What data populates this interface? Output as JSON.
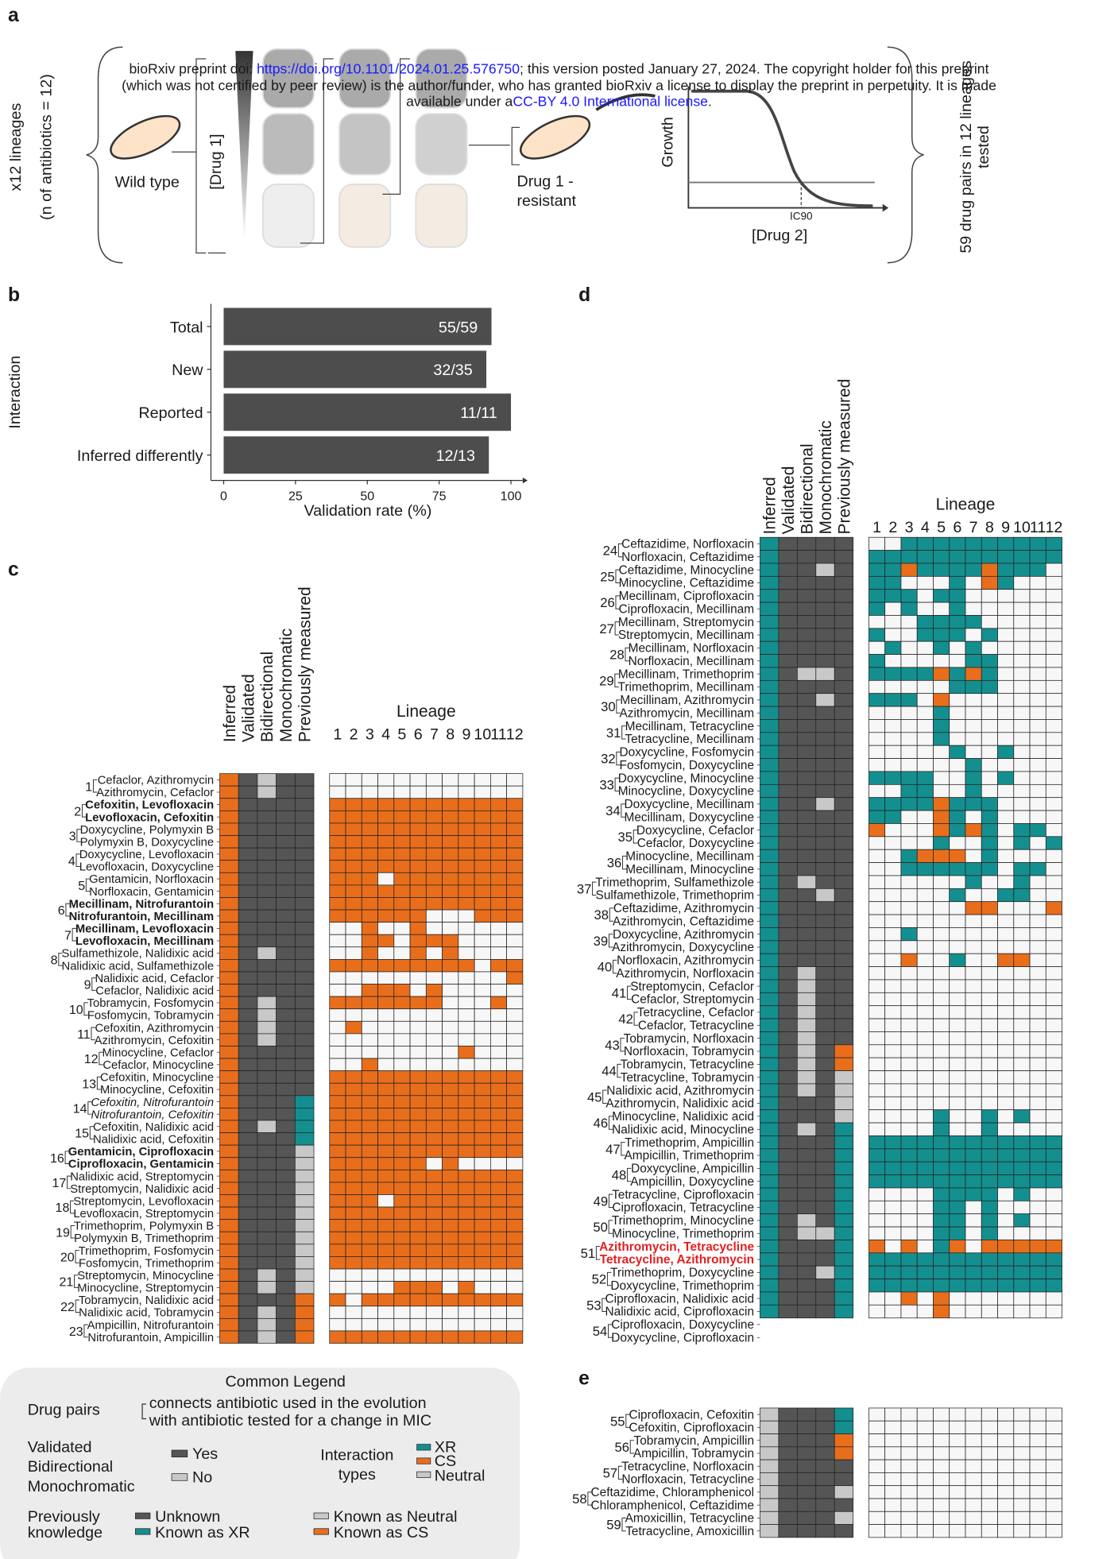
{
  "header": {
    "line1": [
      "bioRxiv preprint doi: ",
      "https://doi.org/10.1101/2024.01.25.576750",
      "; this version posted January 27, 2024. The copyright holder for this preprint"
    ],
    "line2": "(which was not certified by peer review) is the author/funder, who has granted bioRxiv a license to display the preprint in perpetuity. It is made",
    "line3": [
      "available under a",
      "CC-BY 4.0 International license",
      "."
    ]
  },
  "panel_a": {
    "label": "a",
    "lineages": "x12 lineages",
    "antibiotics": "(n of antibiotics = 12)",
    "wild_type": "Wild type",
    "drug1": "[Drug 1]",
    "resistant": [
      "Drug 1 -",
      "resistant"
    ],
    "growth": "Growth",
    "ic90": "IC90",
    "drug2": "[Drug 2]",
    "summary": [
      "59 drug pairs in 12 lineages",
      "tested"
    ]
  },
  "panel_b": {
    "label": "b",
    "chart_data": {
      "type": "bar",
      "orientation": "horizontal",
      "ylabel": "Interaction",
      "xlabel": "Validation rate (%)",
      "categories": [
        "Total",
        "New",
        "Reported",
        "Inferred differently"
      ],
      "values": [
        93.22,
        91.43,
        100,
        92.31
      ],
      "value_labels": [
        "55/59",
        "32/35",
        "11/11",
        "12/13"
      ],
      "color": "#4d4d4d",
      "xlim": [
        0,
        100
      ],
      "xticks": [
        0,
        25,
        50,
        75,
        100
      ]
    }
  },
  "panel_c": {
    "label": "c",
    "columns": [
      "Inferred",
      "Validated",
      "Bidirectional",
      "Monochromatic",
      "Previously measured"
    ],
    "lineage_title": "Lineage",
    "lineages": [
      1,
      2,
      3,
      4,
      5,
      6,
      7,
      8,
      9,
      10,
      11,
      12
    ],
    "pairs": [
      {
        "number": 1,
        "drugs": [
          "Cefaclor, Azithromycin",
          "Azithromycin, Cefaclor"
        ]
      },
      {
        "number": 2,
        "drugs": [
          "Cefoxitin, Levofloxacin",
          "Levofloxacin, Cefoxitin"
        ],
        "style": "bold"
      },
      {
        "number": 3,
        "drugs": [
          "Doxycycline, Polymyxin B",
          "Polymyxin B, Doxycycline"
        ]
      },
      {
        "number": 4,
        "drugs": [
          "Doxycycline, Levofloxacin",
          "Levofloxacin, Doxycycline"
        ]
      },
      {
        "number": 5,
        "drugs": [
          "Gentamicin, Norfloxacin",
          "Norfloxacin, Gentamicin"
        ]
      },
      {
        "number": 6,
        "drugs": [
          "Mecillinam, Nitrofurantoin",
          "Nitrofurantoin, Mecillinam"
        ],
        "style": "bold"
      },
      {
        "number": 7,
        "drugs": [
          "Mecillinam, Levofloxacin",
          "Levofloxacin, Mecillinam"
        ],
        "style": "bold"
      },
      {
        "number": 8,
        "drugs": [
          "Sulfamethizole, Nalidixic acid",
          "Nalidixic acid, Sulfamethizole"
        ]
      },
      {
        "number": 9,
        "drugs": [
          "Nalidixic acid, Cefaclor",
          "Cefaclor, Nalidixic acid"
        ]
      },
      {
        "number": 10,
        "drugs": [
          "Tobramycin, Fosfomycin",
          "Fosfomycin, Tobramycin"
        ]
      },
      {
        "number": 11,
        "drugs": [
          "Cefoxitin, Azithromycin",
          "Azithromycin, Cefoxitin"
        ]
      },
      {
        "number": 12,
        "drugs": [
          "Minocycline, Cefaclor",
          "Cefaclor, Minocycline"
        ]
      },
      {
        "number": 13,
        "drugs": [
          "Cefoxitin, Minocycline",
          "Minocycline, Cefoxitin"
        ]
      },
      {
        "number": 14,
        "drugs": [
          "Cefoxitin, Nitrofurantoin",
          "Nitrofurantoin, Cefoxitin"
        ],
        "style": "italic"
      },
      {
        "number": 15,
        "drugs": [
          "Cefoxitin, Nalidixic acid",
          "Nalidixic acid, Cefoxitin"
        ]
      },
      {
        "number": 16,
        "drugs": [
          "Gentamicin, Ciprofloxacin",
          "Ciprofloxacin, Gentamicin"
        ],
        "style": "bold"
      },
      {
        "number": 17,
        "drugs": [
          "Nalidixic acid, Streptomycin",
          "Streptomycin, Nalidixic acid"
        ]
      },
      {
        "number": 18,
        "drugs": [
          "Streptomycin, Levofloxacin",
          "Levofloxacin, Streptomycin"
        ]
      },
      {
        "number": 19,
        "drugs": [
          "Trimethoprim, Polymyxin B",
          "Polymyxin B, Trimethoprim"
        ]
      },
      {
        "number": 20,
        "drugs": [
          "Trimethoprim, Fosfomycin",
          "Fosfomycin, Trimethoprim"
        ]
      },
      {
        "number": 21,
        "drugs": [
          "Streptomycin, Minocycline",
          "Minocycline, Streptomycin"
        ]
      },
      {
        "number": 22,
        "drugs": [
          "Tobramycin, Nalidixic acid",
          "Nalidixic acid, Tobramycin"
        ]
      },
      {
        "number": 23,
        "drugs": [
          "Ampicillin, Nitrofurantoin",
          "Nitrofurantoin, Ampicillin"
        ]
      }
    ]
  },
  "panel_d": {
    "label": "d",
    "columns": [
      "Inferred",
      "Validated",
      "Bidirectional",
      "Monochromatic",
      "Previously measured"
    ],
    "lineage_title": "Lineage",
    "lineages": [
      1,
      2,
      3,
      4,
      5,
      6,
      7,
      8,
      9,
      10,
      11,
      12
    ],
    "pairs": [
      {
        "number": 24,
        "drugs": [
          "Ceftazidime, Norfloxacin",
          "Norfloxacin, Ceftazidime"
        ]
      },
      {
        "number": 25,
        "drugs": [
          "Ceftazidime, Minocycline",
          "Minocycline, Ceftazidime"
        ]
      },
      {
        "number": 26,
        "drugs": [
          "Mecillinam, Ciprofloxacin",
          "Ciprofloxacin, Mecillinam"
        ]
      },
      {
        "number": 27,
        "drugs": [
          "Mecillinam, Streptomycin",
          "Streptomycin, Mecillinam"
        ]
      },
      {
        "number": 28,
        "drugs": [
          "Mecillinam, Norfloxacin",
          "Norfloxacin, Mecillinam"
        ]
      },
      {
        "number": 29,
        "drugs": [
          "Mecillinam, Trimethoprim",
          "Trimethoprim, Mecillinam"
        ]
      },
      {
        "number": 30,
        "drugs": [
          "Mecillinam, Azithromycin",
          "Azithromycin, Mecillinam"
        ]
      },
      {
        "number": 31,
        "drugs": [
          "Mecillinam, Tetracycline",
          "Tetracycline, Mecillinam"
        ]
      },
      {
        "number": 32,
        "drugs": [
          "Doxycycline, Fosfomycin",
          "Fosfomycin, Doxycycline"
        ]
      },
      {
        "number": 33,
        "drugs": [
          "Doxycycline, Minocycline",
          "Minocycline, Doxycycline"
        ]
      },
      {
        "number": 34,
        "drugs": [
          "Doxycycline, Mecillinam",
          "Mecillinam, Doxycycline"
        ]
      },
      {
        "number": 35,
        "drugs": [
          "Doxycycline, Cefaclor",
          "Cefaclor, Doxycycline"
        ]
      },
      {
        "number": 36,
        "drugs": [
          "Minocycline, Mecillinam",
          "Mecillinam, Minocycline"
        ]
      },
      {
        "number": 37,
        "drugs": [
          "Trimethoprim, Sulfamethizole",
          "Sulfamethizole, Trimethoprim"
        ]
      },
      {
        "number": 38,
        "drugs": [
          "Ceftazidime, Azithromycin",
          "Azithromycin, Ceftazidime"
        ]
      },
      {
        "number": 39,
        "drugs": [
          "Doxycycline, Azithromycin",
          "Azithromycin, Doxycycline"
        ]
      },
      {
        "number": 40,
        "drugs": [
          "Norfloxacin, Azithromycin",
          "Azithromycin, Norfloxacin"
        ]
      },
      {
        "number": 41,
        "drugs": [
          "Streptomycin, Cefaclor",
          "Cefaclor, Streptomycin"
        ]
      },
      {
        "number": 42,
        "drugs": [
          "Tetracycline, Cefaclor",
          "Cefaclor, Tetracycline"
        ]
      },
      {
        "number": 43,
        "drugs": [
          "Tobramycin, Norfloxacin",
          "Norfloxacin, Tobramycin"
        ]
      },
      {
        "number": 44,
        "drugs": [
          "Tobramycin, Tetracycline",
          "Tetracycline, Tobramycin"
        ]
      },
      {
        "number": 45,
        "drugs": [
          "Nalidixic acid, Azithromycin",
          "Azithromycin, Nalidixic acid"
        ]
      },
      {
        "number": 46,
        "drugs": [
          "Minocycline, Nalidixic acid",
          "Nalidixic acid, Minocycline"
        ]
      },
      {
        "number": 47,
        "drugs": [
          "Trimethoprim, Ampicillin",
          "Ampicillin, Trimethoprim"
        ]
      },
      {
        "number": 48,
        "drugs": [
          "Doxycycline, Ampicillin",
          "Ampicillin, Doxycycline"
        ]
      },
      {
        "number": 49,
        "drugs": [
          "Tetracycline, Ciprofloxacin",
          "Ciprofloxacin, Tetracycline"
        ]
      },
      {
        "number": 50,
        "drugs": [
          "Trimethoprim, Minocycline",
          "Minocycline, Trimethoprim"
        ]
      },
      {
        "number": 51,
        "drugs": [
          "Azithromycin, Tetracycline",
          "Tetracycline, Azithromycin"
        ],
        "style": "red"
      },
      {
        "number": 52,
        "drugs": [
          "Trimethoprim, Doxycycline",
          "Doxycycline, Trimethoprim"
        ]
      },
      {
        "number": 53,
        "drugs": [
          "Ciprofloxacin, Nalidixic acid",
          "Nalidixic acid, Ciprofloxacin"
        ]
      },
      {
        "number": 54,
        "drugs": [
          "Ciprofloxacin, Doxycycline",
          "Doxycycline, Ciprofloxacin"
        ]
      }
    ]
  },
  "panel_e": {
    "label": "e",
    "pairs": [
      {
        "number": 55,
        "drugs": [
          "Ciprofloxacin, Cefoxitin",
          "Cefoxitin, Ciprofloxacin"
        ]
      },
      {
        "number": 56,
        "drugs": [
          "Tobramycin, Ampicillin",
          "Ampicillin, Tobramycin"
        ]
      },
      {
        "number": 57,
        "drugs": [
          "Tetracycline, Norfloxacin",
          "Norfloxacin, Tetracycline"
        ]
      },
      {
        "number": 58,
        "drugs": [
          "Ceftazidime, Chloramphenicol",
          "Chloramphenicol, Ceftazidime"
        ]
      },
      {
        "number": 59,
        "drugs": [
          "Amoxicillin, Tetracycline",
          "Tetracycline, Amoxicillin"
        ]
      }
    ]
  },
  "legend": {
    "title": "Common Legend",
    "drug_pairs": "Drug pairs",
    "drug_pairs_text": [
      "connects antibiotic used in the evolution",
      "with antibiotic tested for a change in MIC"
    ],
    "validated": [
      "Validated",
      "Bidirectional",
      "Monochromatic"
    ],
    "yes": "Yes",
    "no": "No",
    "interaction": [
      "Interaction",
      "types"
    ],
    "xr": "XR",
    "cs": "CS",
    "neutral": "Neutral",
    "previous": [
      "Previously",
      "knowledge"
    ],
    "unknown": "Unknown",
    "known_xr": "Known as XR",
    "known_neutral": "Known as Neutral",
    "known_cs": "Known as CS"
  }
}
